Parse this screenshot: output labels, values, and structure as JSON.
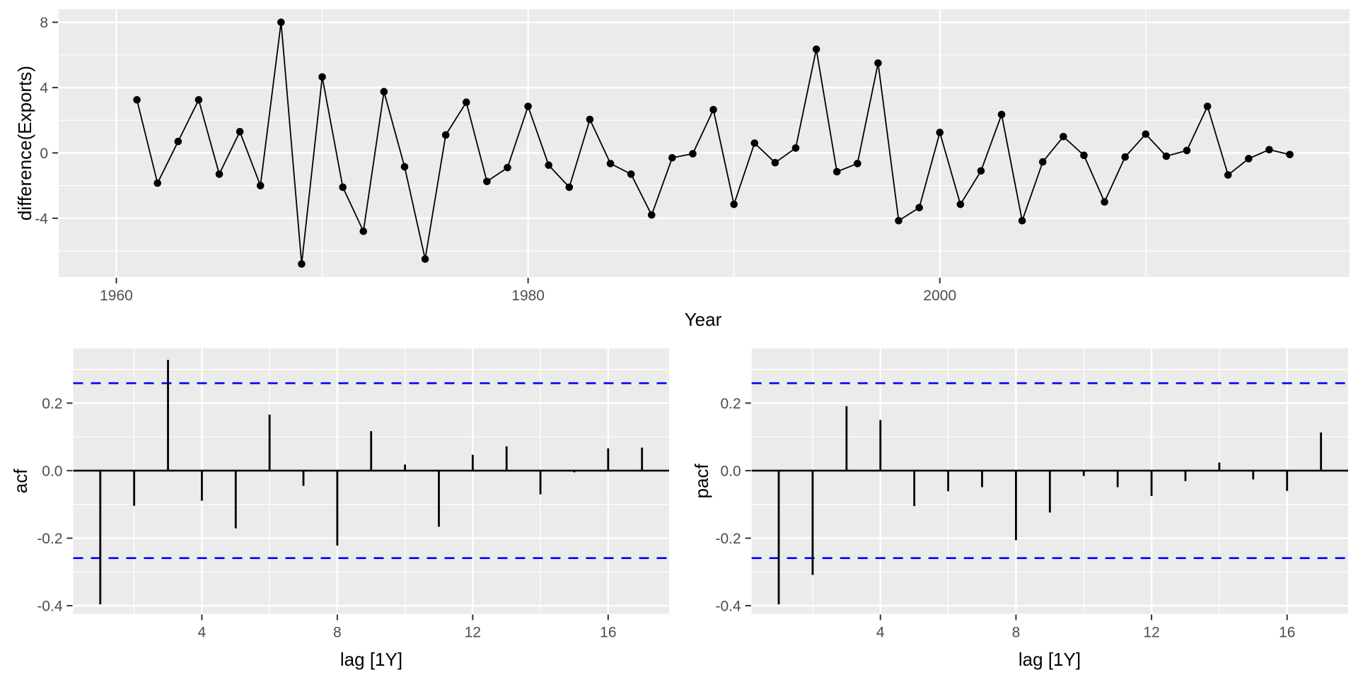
{
  "style": {
    "figure_bg": "#FFFFFF",
    "panel_bg": "#EBEBEB",
    "grid_color": "#FFFFFF",
    "series_color": "#000000",
    "bound_color": "#0000FF",
    "tick_text_color": "#4D4D4D",
    "tick_mark_color": "#333333",
    "axis_title_color": "#000000"
  },
  "chart_data": [
    {
      "id": "differenced-series",
      "type": "line",
      "title": "",
      "xlabel": "Year",
      "ylabel": "difference(Exports)",
      "markers": true,
      "grid": true,
      "x": [
        1961,
        1962,
        1963,
        1964,
        1965,
        1966,
        1967,
        1968,
        1969,
        1970,
        1971,
        1972,
        1973,
        1974,
        1975,
        1976,
        1977,
        1978,
        1979,
        1980,
        1981,
        1982,
        1983,
        1984,
        1985,
        1986,
        1987,
        1988,
        1989,
        1990,
        1991,
        1992,
        1993,
        1994,
        1995,
        1996,
        1997,
        1998,
        1999,
        2000,
        2001,
        2002,
        2003,
        2004,
        2005,
        2006,
        2007,
        2008,
        2009,
        2010,
        2011,
        2012,
        2013,
        2014,
        2015,
        2016,
        2017
      ],
      "y": [
        3.25,
        -1.85,
        0.7,
        3.25,
        -1.3,
        1.3,
        -2.0,
        8.0,
        -6.8,
        4.65,
        -2.1,
        -4.8,
        3.75,
        -0.85,
        -6.5,
        1.1,
        3.1,
        -1.75,
        -0.9,
        2.85,
        -0.75,
        -2.1,
        2.05,
        -0.65,
        -1.3,
        -3.8,
        -0.3,
        -0.05,
        2.65,
        -3.15,
        0.6,
        -0.6,
        0.3,
        6.35,
        -1.15,
        -0.65,
        5.5,
        -4.15,
        -3.35,
        1.25,
        -3.15,
        -1.1,
        2.35,
        -4.15,
        -0.55,
        1.0,
        -0.15,
        -3.0,
        -0.25,
        1.15,
        -0.2,
        0.15,
        2.85,
        -1.35,
        -0.35,
        0.2,
        -0.1
      ],
      "xlim": [
        1957.2,
        2019.9
      ],
      "ylim": [
        -7.6,
        8.8
      ],
      "xticks": {
        "values": [
          1960,
          1980,
          2000
        ],
        "labels": [
          "1960",
          "1980",
          "2000"
        ],
        "minor": [
          1970,
          1990,
          2010
        ]
      },
      "yticks": {
        "values": [
          8,
          4,
          0,
          -4
        ],
        "labels": [
          "8",
          "4",
          "0",
          "-4"
        ],
        "minor": [
          6,
          2,
          -2,
          -6
        ]
      }
    },
    {
      "id": "acf",
      "type": "bar",
      "title": "",
      "xlabel": "lag [1Y]",
      "ylabel": "acf",
      "grid": true,
      "x": [
        1,
        2,
        3,
        4,
        5,
        6,
        7,
        8,
        9,
        10,
        11,
        12,
        13,
        14,
        15,
        16,
        17
      ],
      "values": [
        -0.396,
        -0.104,
        0.328,
        -0.089,
        -0.171,
        0.166,
        -0.045,
        -0.222,
        0.117,
        0.018,
        -0.166,
        0.047,
        0.072,
        -0.07,
        -0.005,
        0.066,
        0.068
      ],
      "significance_bounds": [
        -0.259,
        0.259
      ],
      "bound_line_style": "dashed",
      "xlim": [
        0.2,
        17.8
      ],
      "ylim": [
        -0.424,
        0.362
      ],
      "xticks": {
        "values": [
          4,
          8,
          12,
          16
        ],
        "labels": [
          "4",
          "8",
          "12",
          "16"
        ],
        "minor": [
          2,
          6,
          10,
          14
        ]
      },
      "yticks": {
        "values": [
          0.2,
          0.0,
          -0.2,
          -0.4
        ],
        "labels": [
          "0.2",
          "0.0",
          "-0.2",
          "-0.4"
        ],
        "minor": [
          0.3,
          0.1,
          -0.1,
          -0.3
        ]
      }
    },
    {
      "id": "pacf",
      "type": "bar",
      "title": "",
      "xlabel": "lag [1Y]",
      "ylabel": "pacf",
      "grid": true,
      "x": [
        1,
        2,
        3,
        4,
        5,
        6,
        7,
        8,
        9,
        10,
        11,
        12,
        13,
        14,
        15,
        16,
        17
      ],
      "values": [
        -0.396,
        -0.309,
        0.191,
        0.15,
        -0.105,
        -0.061,
        -0.049,
        -0.206,
        -0.124,
        -0.016,
        -0.049,
        -0.075,
        -0.031,
        0.024,
        -0.026,
        -0.06,
        0.113
      ],
      "significance_bounds": [
        -0.259,
        0.259
      ],
      "bound_line_style": "dashed",
      "xlim": [
        0.2,
        17.8
      ],
      "ylim": [
        -0.424,
        0.362
      ],
      "xticks": {
        "values": [
          4,
          8,
          12,
          16
        ],
        "labels": [
          "4",
          "8",
          "12",
          "16"
        ],
        "minor": [
          2,
          6,
          10,
          14
        ]
      },
      "yticks": {
        "values": [
          0.2,
          0.0,
          -0.2,
          -0.4
        ],
        "labels": [
          "0.2",
          "0.0",
          "-0.2",
          "-0.4"
        ],
        "minor": [
          0.3,
          0.1,
          -0.1,
          -0.3
        ]
      }
    }
  ]
}
